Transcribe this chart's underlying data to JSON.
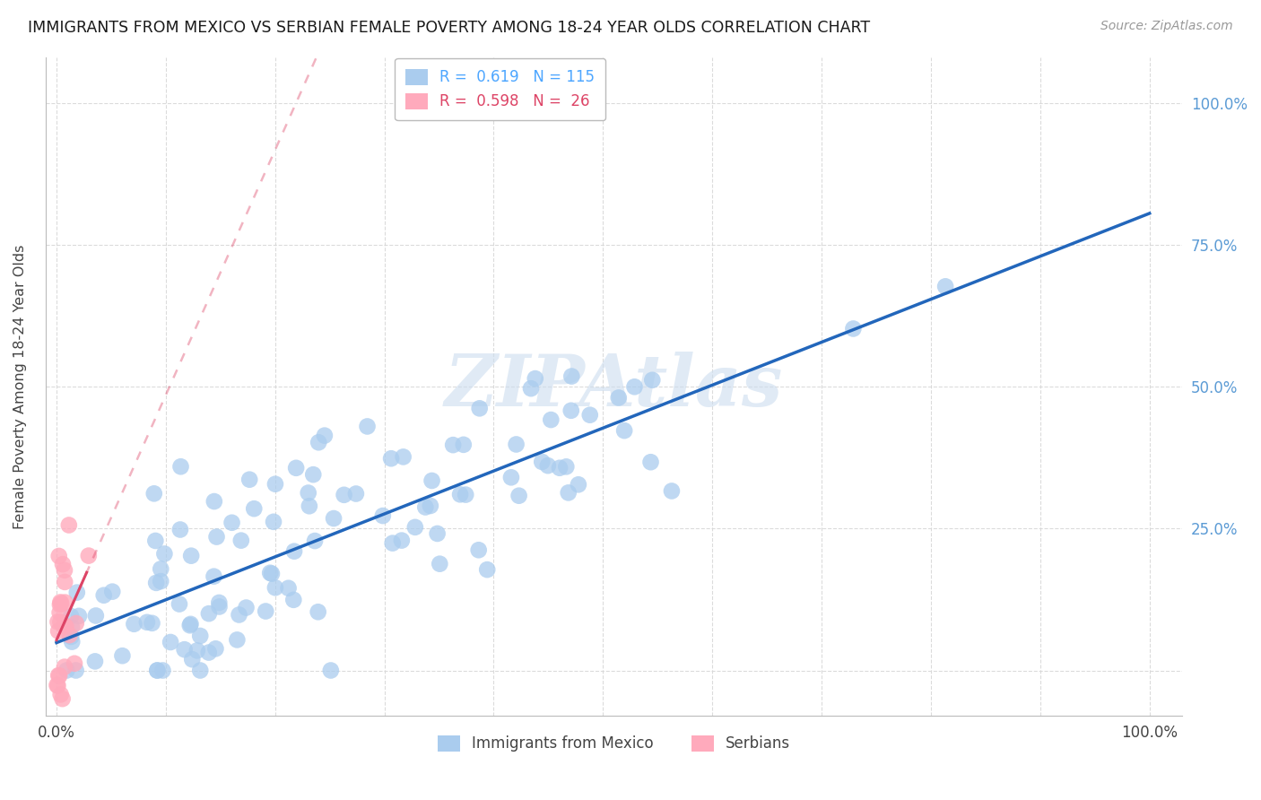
{
  "title": "IMMIGRANTS FROM MEXICO VS SERBIAN FEMALE POVERTY AMONG 18-24 YEAR OLDS CORRELATION CHART",
  "source": "Source: ZipAtlas.com",
  "ylabel": "Female Poverty Among 18-24 Year Olds",
  "mexico_R": 0.619,
  "mexico_N": 115,
  "serbia_R": 0.598,
  "serbia_N": 26,
  "watermark": "ZIPAtlas",
  "background_color": "#ffffff",
  "grid_color": "#d8d8d8",
  "title_color": "#1a1a1a",
  "right_axis_color": "#5b9bd5",
  "mexico_dot_color": "#aaccee",
  "mexico_line_color": "#2266bb",
  "serbia_dot_color": "#ffaabc",
  "serbia_line_color": "#dd4466",
  "legend_text_mexico_color": "#4da6ff",
  "legend_text_serbia_color": "#dd4466"
}
